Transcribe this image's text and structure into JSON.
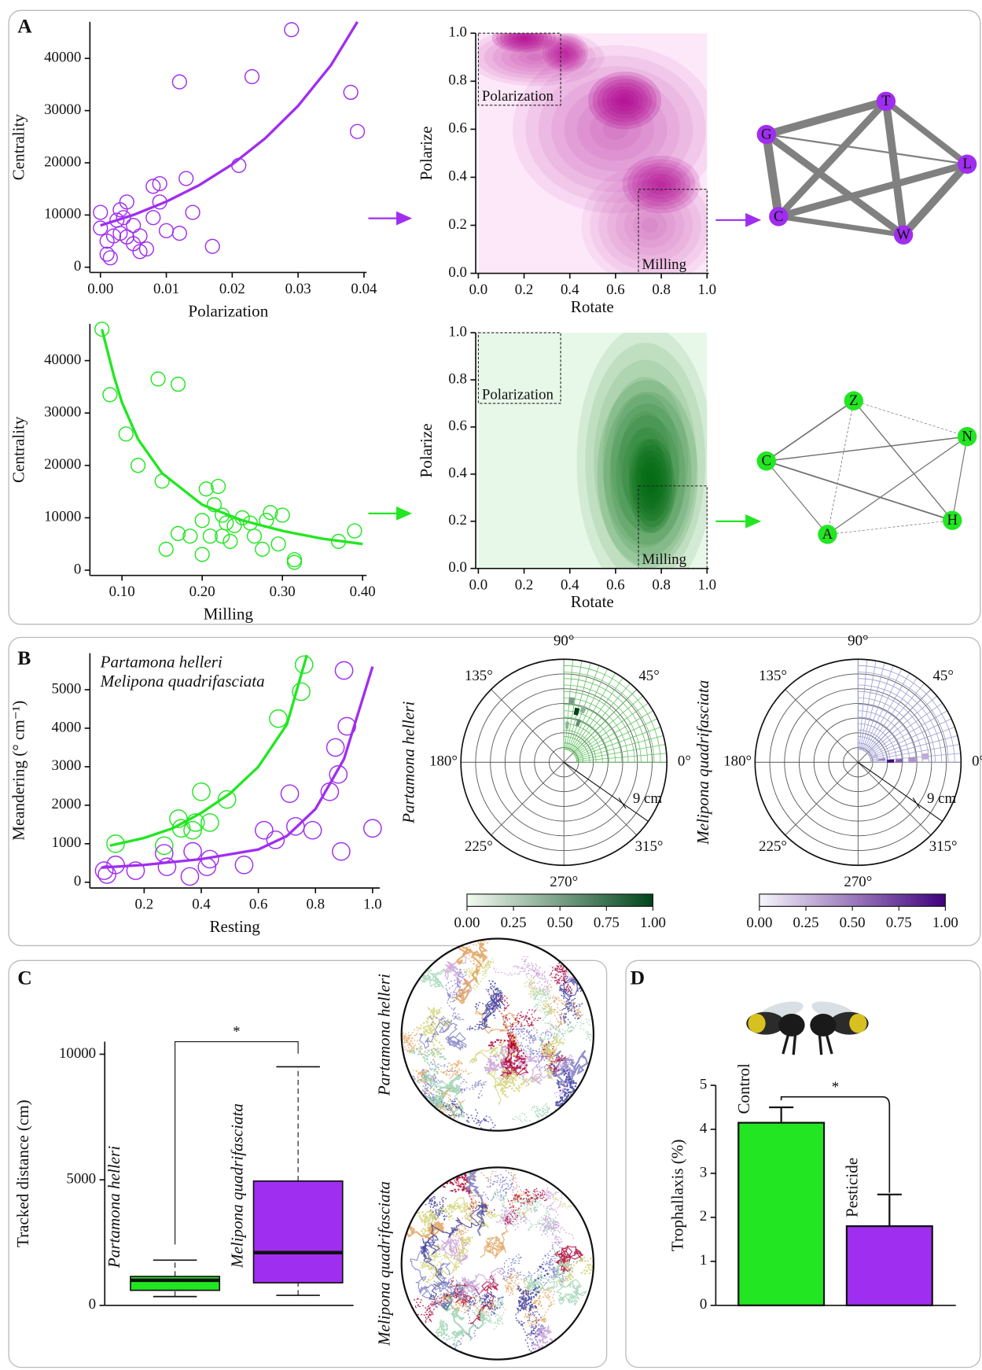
{
  "panel_labels": [
    "A",
    "B",
    "C",
    "D"
  ],
  "chart_data": [
    {
      "type": "scatter",
      "xlabel": "Polarization",
      "ylabel": "Centrality",
      "xlim": [
        -0.0016,
        0.0404
      ],
      "ylim": [
        -1000,
        47000
      ],
      "xticks": [
        {
          "value": 0,
          "label": "0.00"
        },
        0.01,
        0.02,
        0.03,
        0.04
      ],
      "yticks": [
        0,
        10000,
        20000,
        30000,
        40000
      ],
      "series": [
        {
          "color": "#a02ef0",
          "x": [
            0.0,
            0.0,
            0.001,
            0.001,
            0.0015,
            0.002,
            0.0025,
            0.003,
            0.003,
            0.0035,
            0.004,
            0.004,
            0.005,
            0.005,
            0.006,
            0.006,
            0.007,
            0.008,
            0.008,
            0.009,
            0.009,
            0.01,
            0.012,
            0.012,
            0.013,
            0.014,
            0.017,
            0.021,
            0.023,
            0.029,
            0.038,
            0.039
          ],
          "values": [
            10500,
            7500,
            5000,
            2500,
            1800,
            6000,
            9000,
            11000,
            6500,
            9500,
            5800,
            12500,
            8000,
            4500,
            3000,
            6000,
            3500,
            15500,
            9500,
            12500,
            16000,
            7000,
            35500,
            6500,
            17000,
            10500,
            4000,
            19500,
            36500,
            45500,
            33500,
            26000
          ],
          "fit_x": [
            0,
            0.005,
            0.01,
            0.015,
            0.02,
            0.025,
            0.03,
            0.035,
            0.039
          ],
          "fit_values": [
            8000,
            10020,
            12560,
            15730,
            19700,
            24680,
            30910,
            38720,
            47000
          ]
        }
      ]
    },
    {
      "type": "scatter",
      "xlabel": "Milling",
      "ylabel": "Centrality",
      "xlim": [
        0.06,
        0.405
      ],
      "ylim": [
        -1000,
        47000
      ],
      "xticks": [
        {
          "value": 0.1,
          "label": "0.10"
        },
        {
          "value": 0.2,
          "label": "0.20"
        },
        {
          "value": 0.3,
          "label": "0.30"
        },
        {
          "value": 0.4,
          "label": "0.40"
        }
      ],
      "yticks": [
        0,
        10000,
        20000,
        30000,
        40000
      ],
      "series": [
        {
          "color": "#22e622",
          "x": [
            0.075,
            0.085,
            0.105,
            0.12,
            0.145,
            0.15,
            0.155,
            0.17,
            0.17,
            0.185,
            0.2,
            0.2,
            0.205,
            0.21,
            0.215,
            0.22,
            0.225,
            0.225,
            0.23,
            0.235,
            0.24,
            0.25,
            0.26,
            0.265,
            0.275,
            0.28,
            0.285,
            0.295,
            0.3,
            0.315,
            0.315,
            0.37,
            0.39
          ],
          "values": [
            46000,
            33500,
            26000,
            20000,
            36500,
            17000,
            4000,
            35500,
            7000,
            6500,
            9500,
            3000,
            15500,
            6500,
            12500,
            16000,
            10500,
            6500,
            9000,
            5500,
            8500,
            10000,
            9000,
            6500,
            4000,
            9500,
            11000,
            5000,
            10500,
            2000,
            1500,
            5500,
            7500
          ],
          "fit_x": [
            0.075,
            0.09,
            0.1,
            0.12,
            0.15,
            0.2,
            0.25,
            0.3,
            0.35,
            0.4
          ],
          "fit_values": [
            46000,
            37000,
            32000,
            25000,
            18500,
            12500,
            9500,
            7500,
            6000,
            5000
          ]
        }
      ]
    },
    {
      "type": "density",
      "xlabel": "Rotate",
      "ylabel": "Polarize",
      "color": "#b0008c",
      "background": "#fde8f9",
      "xlim": [
        0,
        1
      ],
      "ylim": [
        0,
        1
      ],
      "xticks": [
        {
          "value": 0,
          "label": "0.0"
        },
        0.2,
        0.4,
        0.6,
        0.8,
        {
          "value": 1,
          "label": "1.0"
        }
      ],
      "yticks": [
        {
          "value": 0,
          "label": "0.0"
        },
        0.2,
        0.4,
        0.6,
        0.8,
        {
          "value": 1,
          "label": "1.0"
        }
      ],
      "peaks": {
        "x": [
          0.6,
          0.75,
          0.25,
          0.2,
          0.38,
          0.64,
          0.8
        ],
        "y": [
          0.6,
          0.2,
          0.9,
          0.98,
          0.92,
          0.72,
          0.37
        ],
        "values": [
          0.35,
          0.3,
          0.4,
          1.0,
          0.7,
          1.0,
          0.75
        ],
        "width": [
          0.45,
          0.3,
          0.3,
          0.14,
          0.1,
          0.16,
          0.17
        ],
        "height": [
          0.35,
          0.25,
          0.12,
          0.06,
          0.08,
          0.12,
          0.12
        ]
      },
      "regions": [
        {
          "label": "Polarization",
          "x": [
            0,
            0.36
          ],
          "y": [
            0.7,
            1.0
          ]
        },
        {
          "label": "Milling",
          "x": [
            0.7,
            1.0
          ],
          "y": [
            0,
            0.35
          ]
        }
      ]
    },
    {
      "type": "density",
      "xlabel": "Rotate",
      "ylabel": "Polarize",
      "color": "#006b10",
      "background": "#e8f8e8",
      "xlim": [
        0,
        1
      ],
      "ylim": [
        0,
        1
      ],
      "xticks": [
        {
          "value": 0,
          "label": "0.0"
        },
        0.2,
        0.4,
        0.6,
        0.8,
        {
          "value": 1,
          "label": "1.0"
        }
      ],
      "yticks": [
        {
          "value": 0,
          "label": "0.0"
        },
        0.2,
        0.4,
        0.6,
        0.8,
        {
          "value": 1,
          "label": "1.0"
        }
      ],
      "peaks": {
        "x": [
          0.73,
          0.74,
          0.76
        ],
        "y": [
          0.45,
          0.4,
          0.35
        ],
        "values": [
          0.45,
          0.6,
          1.0
        ],
        "width": [
          0.3,
          0.22,
          0.1
        ],
        "height": [
          0.58,
          0.4,
          0.2
        ]
      },
      "regions": [
        {
          "label": "Polarization",
          "x": [
            0,
            0.36
          ],
          "y": [
            0.7,
            1.0
          ]
        },
        {
          "label": "Milling",
          "x": [
            0.7,
            1.0
          ],
          "y": [
            0,
            0.35
          ]
        }
      ]
    },
    {
      "type": "network",
      "color": "#a02ef0",
      "edge_color": "#808080",
      "nodes": [
        "G",
        "T",
        "L",
        "W",
        "C"
      ],
      "edges": [
        {
          "source": 0,
          "target": 1,
          "weight": 9
        },
        {
          "source": 1,
          "target": 2,
          "weight": 7
        },
        {
          "source": 1,
          "target": 3,
          "weight": 9
        },
        {
          "source": 1,
          "target": 4,
          "weight": 8
        },
        {
          "source": 0,
          "target": 4,
          "weight": 10
        },
        {
          "source": 0,
          "target": 3,
          "weight": 8
        },
        {
          "source": 2,
          "target": 3,
          "weight": 9
        },
        {
          "source": 4,
          "target": 3,
          "weight": 6
        },
        {
          "source": 0,
          "target": 2,
          "weight": 2
        },
        {
          "source": 4,
          "target": 2,
          "weight": 8
        }
      ]
    },
    {
      "type": "network",
      "color": "#22e622",
      "edge_color": "#707070",
      "nodes": [
        "Z",
        "N",
        "H",
        "A",
        "C"
      ],
      "edges": [
        {
          "source": 0,
          "target": 4,
          "weight": 1.5
        },
        {
          "source": 0,
          "target": 1,
          "weight": 0.6
        },
        {
          "source": 0,
          "target": 3,
          "weight": 0.7
        },
        {
          "source": 0,
          "target": 2,
          "weight": 1.2
        },
        {
          "source": 4,
          "target": 1,
          "weight": 1.3
        },
        {
          "source": 4,
          "target": 2,
          "weight": 1.6
        },
        {
          "source": 4,
          "target": 3,
          "weight": 1
        },
        {
          "source": 1,
          "target": 2,
          "weight": 1
        },
        {
          "source": 1,
          "target": 3,
          "weight": 1.1
        },
        {
          "source": 3,
          "target": 2,
          "weight": 0.6
        }
      ]
    },
    {
      "type": "scatter",
      "xlabel": "Resting",
      "ylabel": "Meandering (° cm⁻¹)",
      "xlim": [
        0.01,
        1.025
      ],
      "ylim": [
        -150,
        5950
      ],
      "xticks": [
        0.2,
        0.4,
        0.6,
        0.8,
        {
          "value": 1,
          "label": "1.0"
        }
      ],
      "yticks": [
        0,
        1000,
        2000,
        3000,
        4000,
        5000
      ],
      "series": [
        {
          "name": "Partamona helleri",
          "color": "#22e622",
          "x": [
            0.1,
            0.27,
            0.32,
            0.33,
            0.37,
            0.38,
            0.4,
            0.43,
            0.49,
            0.67,
            0.75,
            0.76
          ],
          "values": [
            1000,
            950,
            1650,
            1400,
            1350,
            1550,
            2350,
            1550,
            2150,
            4250,
            4950,
            5650
          ],
          "fit_x": [
            0.08,
            0.2,
            0.3,
            0.4,
            0.5,
            0.6,
            0.7,
            0.77
          ],
          "fit_values": [
            950,
            1150,
            1400,
            1800,
            2300,
            3000,
            4100,
            5900
          ]
        },
        {
          "name": "Melipona quadrifasciata",
          "color": "#a02ef0",
          "x": [
            0.06,
            0.07,
            0.1,
            0.17,
            0.27,
            0.28,
            0.36,
            0.37,
            0.42,
            0.43,
            0.55,
            0.62,
            0.66,
            0.71,
            0.73,
            0.79,
            0.85,
            0.87,
            0.88,
            0.89,
            0.9,
            0.91,
            1.0
          ],
          "values": [
            300,
            200,
            450,
            300,
            750,
            400,
            150,
            800,
            400,
            600,
            450,
            1350,
            1100,
            2300,
            1450,
            1350,
            2350,
            3500,
            2800,
            800,
            5500,
            4050,
            1400
          ],
          "fit_x": [
            0.05,
            0.2,
            0.4,
            0.6,
            0.7,
            0.8,
            0.9,
            1.0
          ],
          "fit_values": [
            380,
            450,
            600,
            850,
            1200,
            1900,
            3200,
            5600
          ]
        }
      ]
    },
    {
      "type": "polar_heatmap",
      "title": "Partamona helleri",
      "color": "#22e622",
      "grid_color": "#5cc05c",
      "angle_ticks": [
        {
          "value": 90,
          "label": "90°"
        },
        {
          "value": 45,
          "label": "45°"
        },
        {
          "value": 0,
          "label": "0°"
        },
        {
          "value": 315,
          "label": "315°"
        },
        {
          "value": 270,
          "label": "270°"
        },
        {
          "value": 225,
          "label": "225°"
        },
        {
          "value": 180,
          "label": "180°"
        },
        {
          "value": 135,
          "label": "135°"
        }
      ],
      "rlim": [
        0,
        13
      ],
      "rticks": [
        {
          "value": 9,
          "label": "9 cm"
        }
      ],
      "cells": {
        "angle": [
          76,
          83,
          85,
          70,
          70
        ],
        "radius": [
          6.6,
          7.8,
          4.7,
          5.3,
          7.1
        ],
        "values": [
          1.0,
          0.5,
          0.4,
          0.6,
          0.4
        ]
      },
      "cbar_colors": [
        "#f2fbf0",
        "#00441b"
      ],
      "cbar_ticks": [
        {
          "value": 0,
          "label": "0.00"
        },
        0.25,
        {
          "value": 0.5,
          "label": "0.50"
        },
        0.75,
        {
          "value": 1,
          "label": "1.00"
        }
      ]
    },
    {
      "type": "polar_heatmap",
      "title": "Melipona quadrifasciata",
      "color": "#a02ef0",
      "grid_color": "#9a9ad2",
      "angle_ticks": [
        {
          "value": 90,
          "label": "90°"
        },
        {
          "value": 45,
          "label": "45°"
        },
        {
          "value": 0,
          "label": "0°"
        },
        {
          "value": 315,
          "label": "315°"
        },
        {
          "value": 270,
          "label": "270°"
        },
        {
          "value": 225,
          "label": "225°"
        },
        {
          "value": 180,
          "label": "180°"
        },
        {
          "value": 135,
          "label": "135°"
        }
      ],
      "rlim": [
        0,
        13
      ],
      "rticks": [
        {
          "value": 9,
          "label": "9 cm"
        }
      ],
      "cells": {
        "angle": [
          2,
          2,
          3,
          5,
          6,
          20
        ],
        "radius": [
          4.1,
          5.2,
          6.8,
          8.5,
          3,
          2.2
        ],
        "values": [
          1.0,
          0.6,
          0.4,
          0.3,
          0.5,
          0.3
        ]
      },
      "cbar_colors": [
        "#f7f6fb",
        "#3f007d"
      ],
      "cbar_ticks": [
        {
          "value": 0,
          "label": "0.00"
        },
        0.25,
        {
          "value": 0.5,
          "label": "0.50"
        },
        0.75,
        {
          "value": 1,
          "label": "1.00"
        }
      ]
    },
    {
      "type": "box",
      "categories": [
        "Partamona helleri",
        "Melipona quadrifasciata"
      ],
      "colors": [
        "#22e622",
        "#a02ef0"
      ],
      "boxes": [
        {
          "min": 350,
          "q1": 600,
          "median": 1000,
          "q3": 1150,
          "max": 1800
        },
        {
          "min": 400,
          "q1": 900,
          "median": 2100,
          "q3": 4950,
          "max": 9500
        }
      ],
      "ylabel": "Tracked distance (cm)",
      "ylim": [
        0,
        10500
      ],
      "yticks": [
        0,
        5000,
        10000
      ],
      "annotation": "*",
      "track_labels": [
        "Partamona helleri",
        "Melipona quadrifasciata"
      ]
    },
    {
      "type": "bar",
      "categories": [
        "Control",
        "Pesticide"
      ],
      "colors": [
        "#22e622",
        "#a02ef0"
      ],
      "values": [
        4.15,
        1.8
      ],
      "errors": [
        0.35,
        0.72
      ],
      "ylabel": "Trophallaxis (%)",
      "ylim": [
        0,
        5
      ],
      "yticks": [
        0,
        1,
        2,
        3,
        4,
        5
      ],
      "annotation": "*"
    }
  ]
}
